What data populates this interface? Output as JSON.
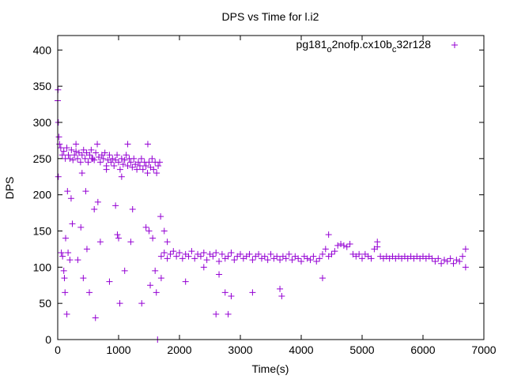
{
  "chart_data": {
    "type": "scatter",
    "title": "DPS vs Time for l.i2",
    "xlabel": "Time(s)",
    "ylabel": "DPS",
    "xlim": [
      0,
      7000
    ],
    "ylim": [
      0,
      420
    ],
    "xticks": [
      0,
      1000,
      2000,
      3000,
      4000,
      5000,
      6000,
      7000
    ],
    "yticks": [
      0,
      50,
      100,
      150,
      200,
      250,
      300,
      350,
      400
    ],
    "grid": false,
    "legend_position": "top-right",
    "color": "#9400d3",
    "marker": "plus",
    "series": [
      {
        "name": "pg181_o2nofp.cx10b_c32r128",
        "legend_parts": [
          {
            "text": "pg181",
            "sub": false
          },
          {
            "text": "o",
            "sub": true
          },
          {
            "text": "2nofp.cx10b",
            "sub": false
          },
          {
            "text": "c",
            "sub": true
          },
          {
            "text": "32r128",
            "sub": false
          }
        ],
        "points": [
          [
            0,
            330
          ],
          [
            10,
            300
          ],
          [
            20,
            280
          ],
          [
            30,
            270
          ],
          [
            50,
            265
          ],
          [
            75,
            255
          ],
          [
            100,
            260
          ],
          [
            125,
            250
          ],
          [
            150,
            265
          ],
          [
            175,
            255
          ],
          [
            200,
            250
          ],
          [
            225,
            262
          ],
          [
            250,
            248
          ],
          [
            275,
            255
          ],
          [
            300,
            260
          ],
          [
            325,
            250
          ],
          [
            350,
            258
          ],
          [
            375,
            245
          ],
          [
            400,
            255
          ],
          [
            425,
            262
          ],
          [
            450,
            250
          ],
          [
            475,
            258
          ],
          [
            500,
            245
          ],
          [
            525,
            255
          ],
          [
            550,
            262
          ],
          [
            575,
            250
          ],
          [
            600,
            248
          ],
          [
            625,
            258
          ],
          [
            650,
            270
          ],
          [
            675,
            252
          ],
          [
            700,
            245
          ],
          [
            725,
            255
          ],
          [
            750,
            250
          ],
          [
            775,
            258
          ],
          [
            800,
            240
          ],
          [
            825,
            248
          ],
          [
            850,
            255
          ],
          [
            875,
            245
          ],
          [
            900,
            250
          ],
          [
            925,
            240
          ],
          [
            950,
            248
          ],
          [
            975,
            255
          ],
          [
            1000,
            245
          ],
          [
            1025,
            235
          ],
          [
            1050,
            250
          ],
          [
            1075,
            242
          ],
          [
            1100,
            248
          ],
          [
            1125,
            255
          ],
          [
            1150,
            240
          ],
          [
            1175,
            250
          ],
          [
            1200,
            245
          ],
          [
            1225,
            238
          ],
          [
            1250,
            250
          ],
          [
            1275,
            242
          ],
          [
            1300,
            235
          ],
          [
            1325,
            245
          ],
          [
            1350,
            240
          ],
          [
            1375,
            250
          ],
          [
            1400,
            235
          ],
          [
            1425,
            245
          ],
          [
            1450,
            240
          ],
          [
            1475,
            230
          ],
          [
            1500,
            245
          ],
          [
            1525,
            238
          ],
          [
            1550,
            250
          ],
          [
            1575,
            235
          ],
          [
            1600,
            245
          ],
          [
            1625,
            230
          ],
          [
            1650,
            240
          ],
          [
            1675,
            245
          ],
          [
            1700,
            115
          ],
          [
            1750,
            120
          ],
          [
            1800,
            112
          ],
          [
            1850,
            118
          ],
          [
            1900,
            122
          ],
          [
            1950,
            115
          ],
          [
            2000,
            120
          ],
          [
            2050,
            112
          ],
          [
            2100,
            118
          ],
          [
            2150,
            115
          ],
          [
            2200,
            122
          ],
          [
            2250,
            112
          ],
          [
            2300,
            118
          ],
          [
            2350,
            115
          ],
          [
            2400,
            120
          ],
          [
            2450,
            110
          ],
          [
            2500,
            118
          ],
          [
            2550,
            115
          ],
          [
            2600,
            120
          ],
          [
            2650,
            108
          ],
          [
            2700,
            118
          ],
          [
            2750,
            112
          ],
          [
            2800,
            115
          ],
          [
            2850,
            120
          ],
          [
            2900,
            110
          ],
          [
            2950,
            115
          ],
          [
            3000,
            118
          ],
          [
            3050,
            112
          ],
          [
            3100,
            115
          ],
          [
            3150,
            118
          ],
          [
            3200,
            110
          ],
          [
            3250,
            115
          ],
          [
            3300,
            118
          ],
          [
            3350,
            112
          ],
          [
            3400,
            115
          ],
          [
            3450,
            110
          ],
          [
            3500,
            118
          ],
          [
            3550,
            112
          ],
          [
            3600,
            115
          ],
          [
            3650,
            110
          ],
          [
            3700,
            115
          ],
          [
            3750,
            112
          ],
          [
            3800,
            118
          ],
          [
            3850,
            110
          ],
          [
            3900,
            115
          ],
          [
            3950,
            112
          ],
          [
            4000,
            108
          ],
          [
            4050,
            115
          ],
          [
            4100,
            112
          ],
          [
            4150,
            110
          ],
          [
            4200,
            115
          ],
          [
            4250,
            108
          ],
          [
            4300,
            112
          ],
          [
            4350,
            118
          ],
          [
            4400,
            125
          ],
          [
            4450,
            115
          ],
          [
            4500,
            118
          ],
          [
            4550,
            122
          ],
          [
            4600,
            130
          ],
          [
            4650,
            132
          ],
          [
            4700,
            130
          ],
          [
            4750,
            128
          ],
          [
            4800,
            132
          ],
          [
            4850,
            118
          ],
          [
            4900,
            115
          ],
          [
            4950,
            118
          ],
          [
            5000,
            112
          ],
          [
            5050,
            118
          ],
          [
            5100,
            115
          ],
          [
            5150,
            112
          ],
          [
            5200,
            125
          ],
          [
            5250,
            128
          ],
          [
            5300,
            115
          ],
          [
            5350,
            112
          ],
          [
            5400,
            115
          ],
          [
            5450,
            112
          ],
          [
            5500,
            115
          ],
          [
            5550,
            112
          ],
          [
            5600,
            115
          ],
          [
            5650,
            112
          ],
          [
            5700,
            115
          ],
          [
            5750,
            112
          ],
          [
            5800,
            115
          ],
          [
            5850,
            112
          ],
          [
            5900,
            115
          ],
          [
            5950,
            112
          ],
          [
            6000,
            115
          ],
          [
            6050,
            112
          ],
          [
            6100,
            115
          ],
          [
            6150,
            112
          ],
          [
            6200,
            108
          ],
          [
            6250,
            112
          ],
          [
            6300,
            105
          ],
          [
            6350,
            110
          ],
          [
            6400,
            108
          ],
          [
            6450,
            112
          ],
          [
            6500,
            105
          ],
          [
            6550,
            110
          ],
          [
            6600,
            108
          ],
          [
            6650,
            115
          ],
          [
            6700,
            125
          ],
          [
            5,
            345
          ],
          [
            10,
            225
          ],
          [
            60,
            120
          ],
          [
            80,
            115
          ],
          [
            100,
            95
          ],
          [
            110,
            85
          ],
          [
            120,
            65
          ],
          [
            130,
            140
          ],
          [
            150,
            35
          ],
          [
            160,
            205
          ],
          [
            170,
            120
          ],
          [
            200,
            110
          ],
          [
            220,
            195
          ],
          [
            240,
            160
          ],
          [
            300,
            270
          ],
          [
            330,
            110
          ],
          [
            380,
            155
          ],
          [
            400,
            230
          ],
          [
            420,
            85
          ],
          [
            460,
            205
          ],
          [
            480,
            125
          ],
          [
            520,
            65
          ],
          [
            560,
            250
          ],
          [
            600,
            180
          ],
          [
            620,
            30
          ],
          [
            660,
            190
          ],
          [
            700,
            135
          ],
          [
            800,
            235
          ],
          [
            850,
            80
          ],
          [
            950,
            185
          ],
          [
            980,
            145
          ],
          [
            1000,
            140
          ],
          [
            1020,
            50
          ],
          [
            1050,
            225
          ],
          [
            1100,
            95
          ],
          [
            1150,
            270
          ],
          [
            1200,
            135
          ],
          [
            1230,
            180
          ],
          [
            1380,
            50
          ],
          [
            1450,
            155
          ],
          [
            1480,
            270
          ],
          [
            1500,
            150
          ],
          [
            1520,
            75
          ],
          [
            1560,
            140
          ],
          [
            1600,
            95
          ],
          [
            1620,
            65
          ],
          [
            1640,
            0
          ],
          [
            1690,
            170
          ],
          [
            1700,
            85
          ],
          [
            1750,
            150
          ],
          [
            1800,
            135
          ],
          [
            2100,
            80
          ],
          [
            2400,
            100
          ],
          [
            2600,
            35
          ],
          [
            2650,
            90
          ],
          [
            2750,
            65
          ],
          [
            2800,
            35
          ],
          [
            2850,
            60
          ],
          [
            3200,
            65
          ],
          [
            3650,
            70
          ],
          [
            3680,
            60
          ],
          [
            4350,
            85
          ],
          [
            4450,
            145
          ],
          [
            5250,
            135
          ],
          [
            6700,
            100
          ]
        ]
      }
    ]
  }
}
